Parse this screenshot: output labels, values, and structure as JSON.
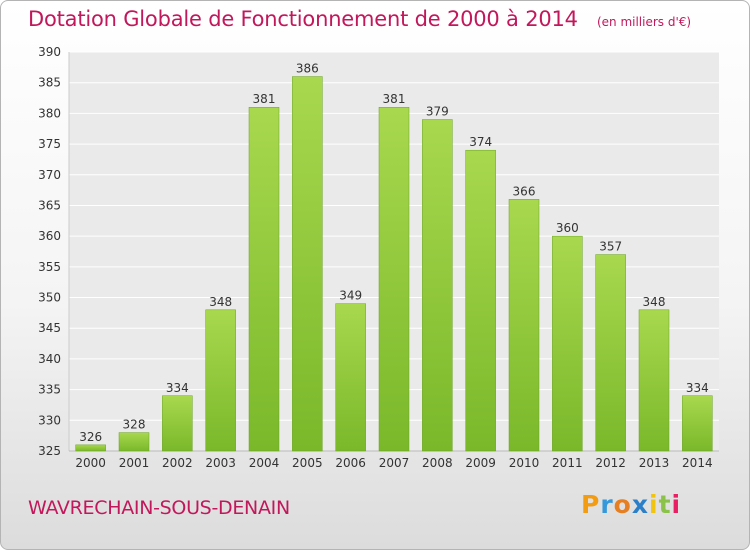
{
  "chart_data": {
    "type": "bar",
    "title": "Dotation Globale de Fonctionnement de 2000 à 2014",
    "unit": "(en milliers d'€)",
    "categories": [
      "2000",
      "2001",
      "2002",
      "2003",
      "2004",
      "2005",
      "2006",
      "2007",
      "2008",
      "2009",
      "2010",
      "2011",
      "2012",
      "2013",
      "2014"
    ],
    "values": [
      326,
      328,
      334,
      348,
      381,
      386,
      349,
      381,
      379,
      374,
      366,
      360,
      357,
      348,
      334
    ],
    "ylim": [
      325,
      390
    ],
    "yticks": [
      325,
      330,
      335,
      340,
      345,
      350,
      355,
      360,
      365,
      370,
      375,
      380,
      385,
      390
    ],
    "grid": true,
    "bar_color": "#7ab82a",
    "bar_color_light": "#a8d84e"
  },
  "footer": {
    "commune": "WAVRECHAIN-SOUS-DENAIN",
    "logo_letters": [
      "P",
      "r",
      "o",
      "x",
      "i",
      "t",
      "i"
    ],
    "logo_colors": [
      "#f39c12",
      "#3498db",
      "#e67e22",
      "#2b7fc9",
      "#f1c40f",
      "#8bc34a",
      "#e91e63"
    ]
  }
}
